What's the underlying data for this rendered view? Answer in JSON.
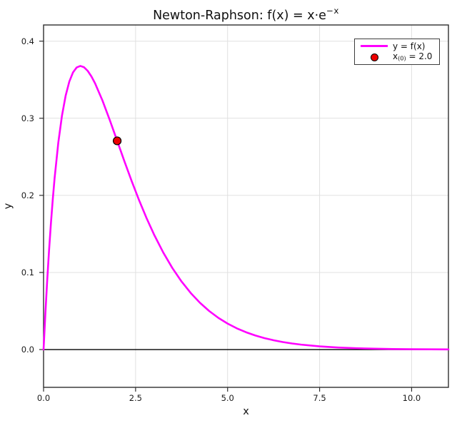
{
  "title": {
    "text_main": "Newton-Raphson: f(x) = x·e",
    "text_sup": "−x"
  },
  "axes": {
    "xlabel": "x",
    "ylabel": "y",
    "x_tick_labels": [
      "0.0",
      "2.5",
      "5.0",
      "7.5",
      "10.0"
    ],
    "x_tick_values": [
      0,
      2.5,
      5,
      7.5,
      10
    ],
    "y_tick_labels": [
      "0.0",
      "0.1",
      "0.2",
      "0.3",
      "0.4"
    ],
    "y_tick_values": [
      0,
      0.1,
      0.2,
      0.3,
      0.4
    ]
  },
  "legend": {
    "entries": [
      {
        "type": "line",
        "color": "#ff00ff",
        "label": "y = f(x)"
      },
      {
        "type": "marker",
        "fill": "#ee0000",
        "edge": "#000000",
        "label_prefix": "x",
        "label_sub": "(0)",
        "label_suffix": " = 2.0"
      }
    ]
  },
  "colors": {
    "curve": "#ff00ff",
    "point_fill": "#ee0000",
    "point_edge": "#000000",
    "grid": "#e0e0e0",
    "frame": "#2f2f2f",
    "zero_line": "#000000",
    "background": "#ffffff",
    "text": "#1a1a1a"
  },
  "chart_data": {
    "type": "line",
    "title": "Newton-Raphson: f(x) = x·e⁻ˣ",
    "xlabel": "x",
    "ylabel": "y",
    "xlim": [
      0,
      11
    ],
    "ylim": [
      -0.049,
      0.421
    ],
    "grid": true,
    "legend_position": "upper right",
    "hline_y": 0,
    "series": [
      {
        "name": "y = f(x)",
        "color": "#ff00ff",
        "x": [
          0,
          0.05,
          0.1,
          0.15,
          0.2,
          0.25,
          0.3,
          0.4,
          0.5,
          0.6,
          0.7,
          0.8,
          0.9,
          1.0,
          1.1,
          1.2,
          1.3,
          1.4,
          1.6,
          1.8,
          2.0,
          2.2,
          2.4,
          2.6,
          2.8,
          3.0,
          3.25,
          3.5,
          3.75,
          4.0,
          4.25,
          4.5,
          4.75,
          5.0,
          5.25,
          5.5,
          5.75,
          6.0,
          6.25,
          6.5,
          6.75,
          7.0,
          7.5,
          8.0,
          8.5,
          9.0,
          9.5,
          10.0,
          10.5,
          11.0
        ],
        "y": [
          0,
          0.047561,
          0.090484,
          0.129106,
          0.163746,
          0.1947,
          0.222245,
          0.268128,
          0.303265,
          0.329287,
          0.34761,
          0.359463,
          0.365913,
          0.367879,
          0.366158,
          0.361433,
          0.354291,
          0.345236,
          0.323034,
          0.297538,
          0.270671,
          0.243767,
          0.217723,
          0.193111,
          0.170269,
          0.149361,
          0.126016,
          0.105691,
          0.088192,
          0.073263,
          0.060623,
          0.04999,
          0.041096,
          0.03369,
          0.027549,
          0.022477,
          0.018301,
          0.014873,
          0.012066,
          0.009772,
          0.007904,
          0.006383,
          0.004148,
          0.002684,
          0.001729,
          0.001111,
          0.000711,
          0.000454,
          0.000289,
          0.000184
        ]
      }
    ],
    "points": [
      {
        "name": "x(0) = 2.0",
        "x": 2.0,
        "y": 0.2707,
        "fill": "#ee0000",
        "edge": "#000000"
      }
    ]
  }
}
